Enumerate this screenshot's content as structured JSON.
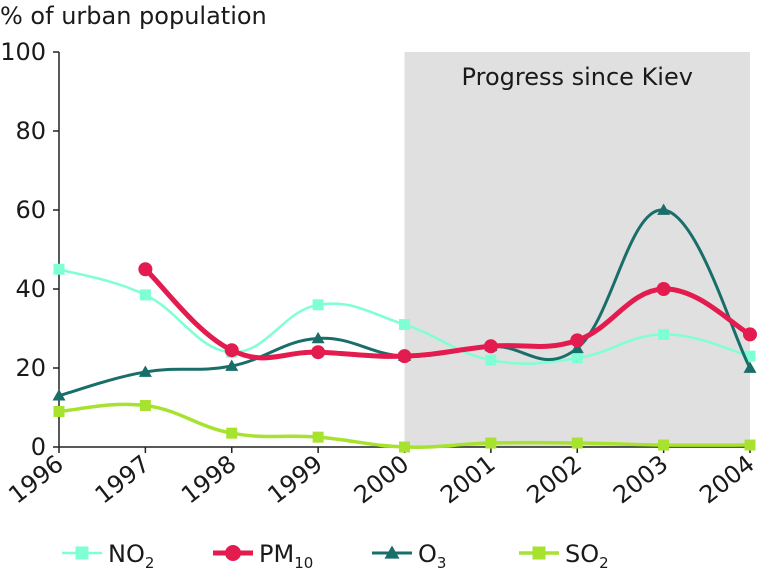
{
  "chart_data": {
    "type": "line",
    "title": "",
    "ylabel": "% of urban population",
    "xlabel": "",
    "categories": [
      "1996",
      "1997",
      "1998",
      "1999",
      "2000",
      "2001",
      "2002",
      "2003",
      "2004"
    ],
    "y_ticks": [
      "0",
      "20",
      "40",
      "60",
      "80",
      "100"
    ],
    "ylim": [
      0,
      100
    ],
    "grid": false,
    "legend_position": "bottom",
    "shaded_region": {
      "label": "Progress since Kiev",
      "from": "2000",
      "to": "2004",
      "color": "#e0e0e0"
    },
    "series": [
      {
        "name": "NO",
        "name_subscript": "2",
        "color": "#7fffd4",
        "marker": "square",
        "smooth": true,
        "values": [
          45,
          38.5,
          24,
          36,
          31,
          22,
          22.5,
          28.5,
          23
        ]
      },
      {
        "name": "PM",
        "name_subscript": "10",
        "color": "#e31b4f",
        "marker": "circle",
        "smooth": true,
        "values": [
          null,
          45,
          24.5,
          24,
          23,
          25.5,
          27,
          40,
          28.5
        ]
      },
      {
        "name": "O",
        "name_subscript": "3",
        "color": "#1a6e6a",
        "marker": "triangle",
        "smooth": true,
        "values": [
          13,
          19,
          20.5,
          27.5,
          23,
          25.5,
          25,
          60,
          20
        ]
      },
      {
        "name": "SO",
        "name_subscript": "2",
        "color": "#a6e22e",
        "marker": "square",
        "smooth": true,
        "values": [
          9,
          10.5,
          3.5,
          2.5,
          0,
          1,
          1,
          0.5,
          0.5
        ]
      }
    ]
  }
}
